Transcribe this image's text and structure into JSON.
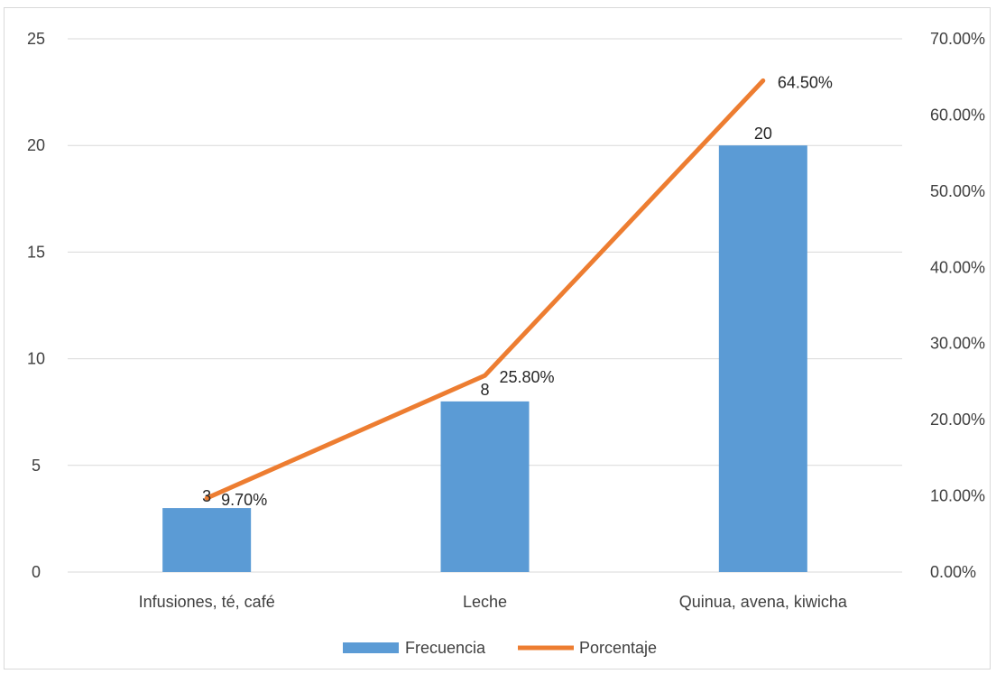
{
  "chart_data": {
    "type": "bar",
    "categories": [
      "Infusiones, té, café",
      "Leche",
      "Quinua, avena, kiwicha"
    ],
    "series": [
      {
        "name": "Frecuencia",
        "type": "bar",
        "axis": "left",
        "color": "#5b9bd5",
        "values": [
          3,
          8,
          20
        ],
        "labels": [
          "3",
          "8",
          "20"
        ]
      },
      {
        "name": "Porcentaje",
        "type": "line",
        "axis": "right",
        "color": "#ed7d31",
        "values": [
          9.7,
          25.8,
          64.5
        ],
        "labels": [
          "9.70%",
          "25.80%",
          "64.50%"
        ]
      }
    ],
    "y_left": {
      "min": 0,
      "max": 25,
      "ticks": [
        "0",
        "5",
        "10",
        "15",
        "20",
        "25"
      ]
    },
    "y_right": {
      "min": 0,
      "max": 70,
      "ticks": [
        "0.00%",
        "10.00%",
        "20.00%",
        "30.00%",
        "40.00%",
        "50.00%",
        "60.00%",
        "70.00%"
      ]
    },
    "grid": true,
    "legend_position": "bottom",
    "title": ""
  }
}
